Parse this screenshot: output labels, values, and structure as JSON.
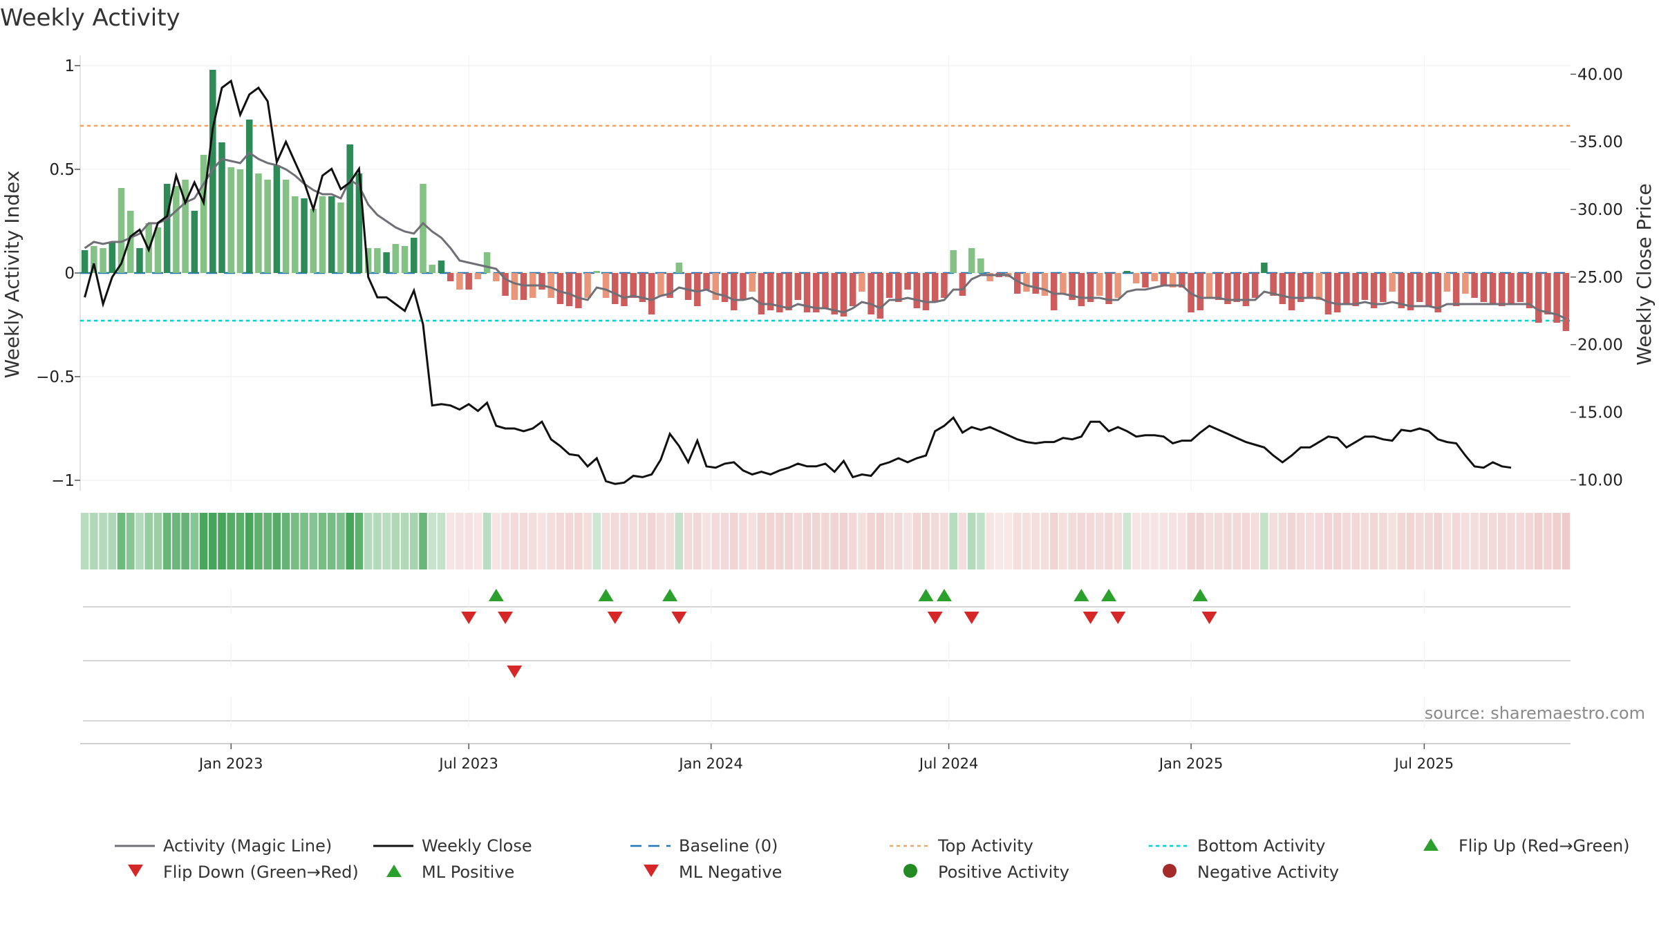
{
  "chart_data": {
    "type": "bar",
    "title": "Weekly Activity",
    "ylabel": "Weekly Activity Index",
    "y2label": "Weekly Close Price",
    "ylim": [
      -1.05,
      1.05
    ],
    "y2lim": [
      9.2,
      41.4
    ],
    "y_ticks": [
      1,
      0.5,
      0,
      -0.5,
      -1
    ],
    "y_tick_labels": [
      "1",
      "0.5",
      "0",
      "−0.5",
      "−1"
    ],
    "y2_ticks": [
      40,
      35,
      30,
      25,
      20,
      15,
      10
    ],
    "y2_tick_labels": [
      "40.00",
      "35.00",
      "30.00",
      "25.00",
      "20.00",
      "15.00",
      "10.00"
    ],
    "x_tick_labels": [
      "Jan 2023",
      "Jul 2023",
      "Jan 2024",
      "Jul 2024",
      "Jan 2025",
      "Jul 2025"
    ],
    "x_tick_weeks": [
      16,
      42,
      68.5,
      94.5,
      121,
      146.5
    ],
    "top_activity": 0.71,
    "bottom_activity": -0.23,
    "baseline": 0,
    "source": "source: sharemaestro.com",
    "grid": true,
    "legend_position": "bottom",
    "colors": {
      "pos_strong": "#2e8b57",
      "pos_light": "#84c184",
      "neg_strong": "#cd5c5c",
      "neg_light": "#e9967a",
      "magic_line": "#6f6f78",
      "close_line": "#111111",
      "baseline": "#1f77b4",
      "top": "#f4a460",
      "bottom": "#00ced1",
      "flip_up": "#2ca02c",
      "flip_down": "#d62728"
    },
    "series": [
      {
        "name": "Weekly Activity",
        "values": [
          0.11,
          0.13,
          0.12,
          0.15,
          0.41,
          0.3,
          0.12,
          0.24,
          0.22,
          0.43,
          0.42,
          0.45,
          0.3,
          0.57,
          0.98,
          0.63,
          0.51,
          0.5,
          0.74,
          0.48,
          0.45,
          0.52,
          0.45,
          0.37,
          0.36,
          0.31,
          0.37,
          0.37,
          0.34,
          0.62,
          0.48,
          0.12,
          0.12,
          0.1,
          0.14,
          0.13,
          0.17,
          0.43,
          0.04,
          0.06,
          -0.04,
          -0.08,
          -0.08,
          -0.03,
          0.1,
          -0.04,
          -0.11,
          -0.13,
          -0.13,
          -0.12,
          -0.08,
          -0.12,
          -0.15,
          -0.16,
          -0.17,
          -0.12,
          0.01,
          -0.12,
          -0.15,
          -0.16,
          -0.12,
          -0.14,
          -0.2,
          -0.11,
          -0.12,
          0.05,
          -0.13,
          -0.16,
          -0.08,
          -0.13,
          -0.14,
          -0.18,
          -0.13,
          -0.09,
          -0.2,
          -0.18,
          -0.19,
          -0.18,
          -0.13,
          -0.19,
          -0.19,
          -0.17,
          -0.2,
          -0.21,
          -0.16,
          -0.09,
          -0.2,
          -0.22,
          -0.12,
          -0.14,
          -0.08,
          -0.17,
          -0.18,
          -0.14,
          -0.12,
          0.11,
          -0.11,
          0.12,
          0.07,
          -0.04,
          -0.02,
          -0.02,
          -0.1,
          -0.09,
          -0.1,
          -0.11,
          -0.18,
          -0.1,
          -0.13,
          -0.16,
          -0.14,
          -0.11,
          -0.15,
          -0.12,
          0.01,
          -0.05,
          -0.07,
          -0.04,
          -0.06,
          -0.07,
          -0.07,
          -0.19,
          -0.18,
          -0.12,
          -0.13,
          -0.15,
          -0.14,
          -0.16,
          -0.12,
          0.05,
          -0.11,
          -0.15,
          -0.18,
          -0.14,
          -0.12,
          -0.13,
          -0.2,
          -0.19,
          -0.15,
          -0.16,
          -0.13,
          -0.17,
          -0.14,
          -0.09,
          -0.17,
          -0.18,
          -0.14,
          -0.16,
          -0.19,
          -0.09,
          -0.16,
          -0.1,
          -0.12,
          -0.14,
          -0.15,
          -0.16,
          -0.15,
          -0.14,
          -0.17,
          -0.24,
          -0.2,
          -0.24,
          -0.28
        ]
      },
      {
        "name": "Activity (Magic Line)",
        "values": [
          0.12,
          0.15,
          0.14,
          0.15,
          0.15,
          0.17,
          0.19,
          0.24,
          0.24,
          0.26,
          0.3,
          0.34,
          0.36,
          0.43,
          0.5,
          0.55,
          0.54,
          0.53,
          0.58,
          0.55,
          0.53,
          0.52,
          0.5,
          0.47,
          0.43,
          0.4,
          0.38,
          0.38,
          0.36,
          0.45,
          0.42,
          0.33,
          0.28,
          0.25,
          0.22,
          0.2,
          0.19,
          0.24,
          0.2,
          0.17,
          0.12,
          0.06,
          0.05,
          0.04,
          0.03,
          0.02,
          -0.03,
          -0.05,
          -0.06,
          -0.06,
          -0.06,
          -0.07,
          -0.09,
          -0.1,
          -0.12,
          -0.13,
          -0.07,
          -0.08,
          -0.1,
          -0.12,
          -0.11,
          -0.12,
          -0.13,
          -0.11,
          -0.1,
          -0.07,
          -0.08,
          -0.09,
          -0.08,
          -0.1,
          -0.11,
          -0.13,
          -0.13,
          -0.12,
          -0.15,
          -0.15,
          -0.16,
          -0.17,
          -0.15,
          -0.16,
          -0.17,
          -0.17,
          -0.18,
          -0.19,
          -0.17,
          -0.14,
          -0.15,
          -0.17,
          -0.13,
          -0.13,
          -0.12,
          -0.13,
          -0.14,
          -0.14,
          -0.13,
          -0.08,
          -0.08,
          -0.03,
          -0.01,
          -0.01,
          -0.01,
          -0.01,
          -0.04,
          -0.06,
          -0.07,
          -0.08,
          -0.1,
          -0.1,
          -0.11,
          -0.12,
          -0.12,
          -0.12,
          -0.13,
          -0.13,
          -0.09,
          -0.08,
          -0.08,
          -0.07,
          -0.06,
          -0.06,
          -0.06,
          -0.1,
          -0.12,
          -0.12,
          -0.12,
          -0.13,
          -0.13,
          -0.13,
          -0.13,
          -0.09,
          -0.1,
          -0.11,
          -0.12,
          -0.12,
          -0.12,
          -0.12,
          -0.14,
          -0.15,
          -0.15,
          -0.15,
          -0.14,
          -0.15,
          -0.15,
          -0.14,
          -0.15,
          -0.16,
          -0.16,
          -0.16,
          -0.17,
          -0.15,
          -0.15,
          -0.15,
          -0.15,
          -0.15,
          -0.15,
          -0.15,
          -0.15,
          -0.15,
          -0.15,
          -0.18,
          -0.19,
          -0.2,
          -0.22
        ]
      },
      {
        "name": "Weekly Close",
        "values": [
          23.5,
          26.0,
          23.0,
          25.0,
          26.0,
          28.0,
          28.5,
          27.0,
          29.0,
          29.5,
          32.5,
          30.5,
          32.0,
          30.5,
          36.0,
          39.0,
          39.5,
          37.0,
          38.5,
          39.0,
          38.0,
          33.5,
          35.0,
          33.5,
          32.0,
          30.0,
          32.5,
          33.0,
          31.5,
          32.0,
          33.0,
          25.0,
          23.5,
          23.5,
          23.0,
          22.5,
          24.0,
          21.5,
          15.5,
          15.6,
          15.5,
          15.2,
          15.6,
          15.1,
          15.7,
          14.0,
          13.8,
          13.8,
          13.6,
          13.8,
          14.3,
          13.0,
          12.5,
          11.9,
          11.8,
          11.0,
          11.6,
          9.9,
          9.7,
          9.8,
          10.3,
          10.2,
          10.4,
          11.5,
          13.4,
          12.5,
          11.3,
          12.9,
          11.0,
          10.9,
          11.2,
          11.3,
          10.7,
          10.4,
          10.6,
          10.4,
          10.7,
          10.9,
          11.2,
          11.0,
          11.0,
          11.2,
          10.6,
          11.4,
          10.2,
          10.4,
          10.3,
          11.1,
          11.3,
          11.6,
          11.3,
          11.6,
          11.8,
          13.6,
          14.0,
          14.6,
          13.5,
          13.9,
          13.7,
          13.9,
          13.6,
          13.3,
          13.0,
          12.8,
          12.7,
          12.8,
          12.8,
          13.1,
          13.0,
          13.2,
          14.3,
          14.3,
          13.6,
          13.9,
          13.6,
          13.2,
          13.3,
          13.3,
          13.2,
          12.7,
          12.9,
          12.9,
          13.5,
          14.0,
          13.7,
          13.4,
          13.1,
          12.8,
          12.6,
          12.4,
          11.8,
          11.3,
          11.8,
          12.4,
          12.4,
          12.8,
          13.2,
          13.1,
          12.4,
          12.8,
          13.2,
          13.2,
          13.0,
          12.9,
          13.7,
          13.6,
          13.8,
          13.6,
          13.0,
          12.8,
          12.7,
          11.8,
          11.0,
          10.9,
          11.3,
          11.0,
          10.9
        ]
      }
    ],
    "flip_up_weeks": [
      45,
      57,
      64,
      92,
      94,
      109,
      112,
      122
    ],
    "flip_down_weeks": [
      42,
      46,
      58,
      65,
      93,
      97,
      110,
      113,
      123
    ],
    "ml_negative_weeks": [
      47
    ],
    "legend": [
      "Activity (Magic Line)",
      "Weekly Close",
      "Baseline (0)",
      "Top Activity",
      "Bottom Activity",
      "Flip Up (Red→Green)",
      "Flip Down (Green→Red)",
      "ML Positive",
      "ML Negative",
      "Positive Activity",
      "Negative Activity"
    ]
  }
}
